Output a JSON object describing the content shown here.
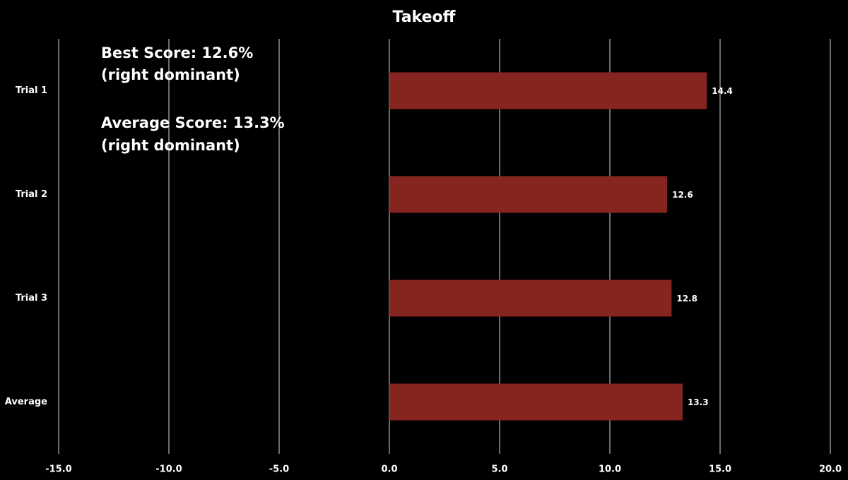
{
  "chart_data": {
    "type": "barh",
    "title": "Takeoff",
    "categories": [
      "Trial 1",
      "Trial 2",
      "Trial 3",
      "Average"
    ],
    "values": [
      14.4,
      12.6,
      12.8,
      13.3
    ],
    "color": "#862420",
    "xlim": [
      -15,
      20
    ],
    "xticks": [
      {
        "value": -15,
        "label": "-15.0"
      },
      {
        "value": -10,
        "label": "-10.0"
      },
      {
        "value": -5,
        "label": "-5.0"
      },
      {
        "value": 0,
        "label": "0.0"
      },
      {
        "value": 5,
        "label": "5.0"
      },
      {
        "value": 10,
        "label": "10.0"
      },
      {
        "value": 15,
        "label": "15.0"
      },
      {
        "value": 20,
        "label": "20.0"
      }
    ],
    "grid": true,
    "annotations": [
      "Best Score: 12.6%",
      "(right dominant)",
      "Average Score: 13.3%",
      "(right dominant)"
    ]
  }
}
